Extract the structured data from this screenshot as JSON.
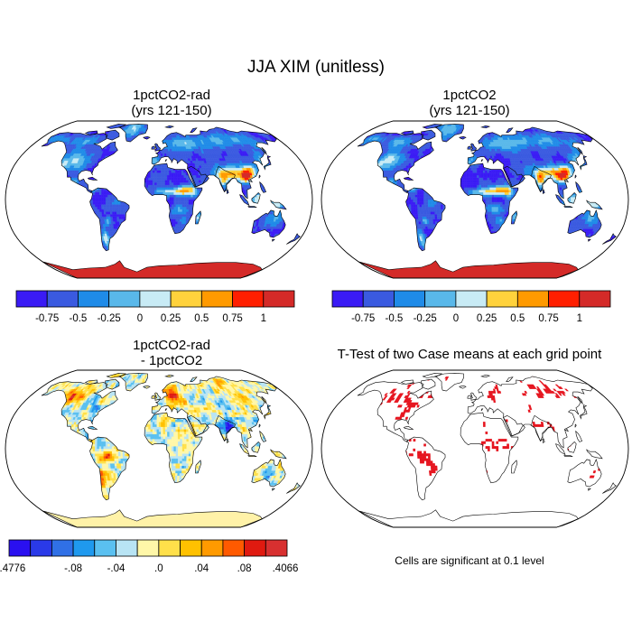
{
  "figure": {
    "title": "JJA XIM (unitless)",
    "note": "Cells are significant at 0.1 level"
  },
  "panels": [
    {
      "id": "p1",
      "title_line1": "1pctCO2-rad",
      "title_line2": "(yrs 121-150)",
      "scheme": "abs"
    },
    {
      "id": "p2",
      "title_line1": "1pctCO2",
      "title_line2": "(yrs 121-150)",
      "scheme": "abs"
    },
    {
      "id": "p3",
      "title_line1": "1pctCO2-rad",
      "title_line2": "- 1pctCO2",
      "scheme": "diff"
    },
    {
      "id": "p4",
      "title_line1": "T-Test of two Case means at each grid point",
      "title_line2": "",
      "scheme": "ttest"
    }
  ],
  "colorbars": {
    "abs": {
      "colors": [
        "#3a1bf5",
        "#3a5ae0",
        "#1f8be8",
        "#59b8ea",
        "#c8ebf5",
        "#ffd23c",
        "#ff9a00",
        "#ff1f00",
        "#d42a28"
      ],
      "labels": [
        "-0.75",
        "-0.5",
        "-0.25",
        "0",
        "0.25",
        "0.5",
        "0.75",
        "1"
      ]
    },
    "diff": {
      "colors": [
        "#2a10f0",
        "#2a3ae8",
        "#3070e6",
        "#1f99ee",
        "#5ac0f0",
        "#b8e4f4",
        "#fff7a8",
        "#ffe04a",
        "#ffc100",
        "#ff9a00",
        "#ff5a00",
        "#e01a10",
        "#d83030"
      ],
      "labels": [
        ".4776",
        "-.08",
        "-.04",
        ".0",
        ".04",
        ".08",
        ".4066"
      ],
      "label_prefixes": [
        "-",
        "",
        "",
        "",
        "",
        "",
        ""
      ]
    },
    "ttest": {
      "color": "#e6141e"
    }
  },
  "colors": {
    "ocean": "#ffffff",
    "outline": "#000000",
    "antarctica_abs": "#d42a28",
    "antarctica_diff": "#fff2a8"
  }
}
